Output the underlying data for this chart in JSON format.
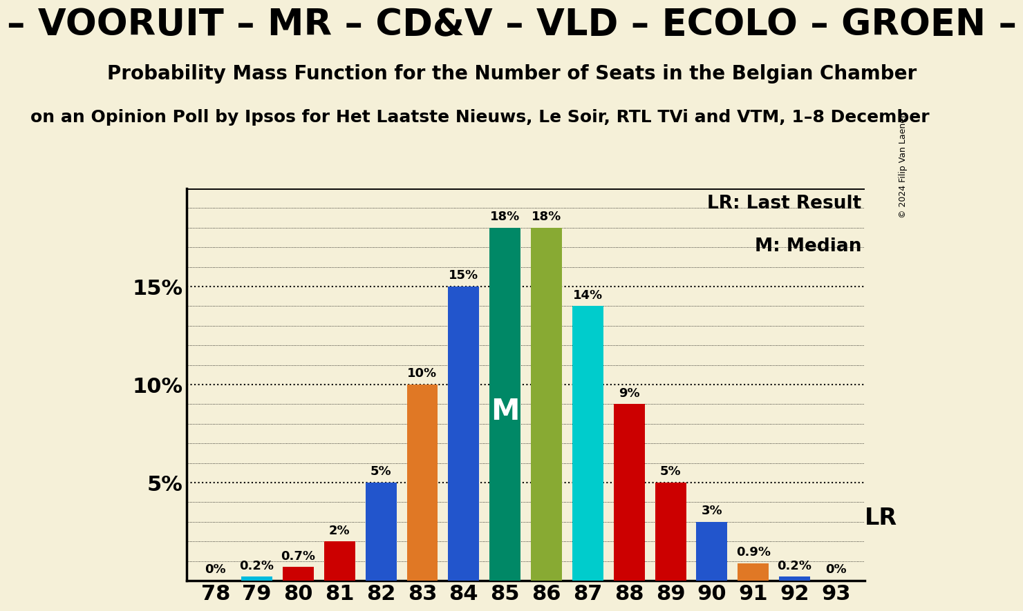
{
  "title_marquee": "– VOORUIT – MR – CD&V – VLD – ECOLO – GROEN –",
  "title_main": "Probability Mass Function for the Number of Seats in the Belgian Chamber",
  "title_sub": "on an Opinion Poll by Ipsos for Het Laatste Nieuws, Le Soir, RTL TVi and VTM, 1–8 December",
  "copyright": "© 2024 Filip Van Laenen",
  "legend_lr": "LR: Last Result",
  "legend_m": "M: Median",
  "background_color": "#f5f0d8",
  "seats": [
    78,
    79,
    80,
    81,
    82,
    83,
    84,
    85,
    86,
    87,
    88,
    89,
    90,
    91,
    92,
    93
  ],
  "probabilities": [
    0.0,
    0.2,
    0.7,
    2.0,
    5.0,
    10.0,
    15.0,
    18.0,
    18.0,
    14.0,
    9.0,
    5.0,
    3.0,
    0.9,
    0.2,
    0.0
  ],
  "bar_labels": [
    "0%",
    "0.2%",
    "0.7%",
    "2%",
    "5%",
    "10%",
    "15%",
    "18%",
    "18%",
    "14%",
    "9%",
    "5%",
    "3%",
    "0.9%",
    "0.2%",
    "0%"
  ],
  "bar_colors": [
    "#cc0000",
    "#00bbdd",
    "#cc0000",
    "#cc0000",
    "#2255cc",
    "#e07825",
    "#2255cc",
    "#008866",
    "#88aa33",
    "#00cccc",
    "#cc0000",
    "#cc0000",
    "#2255cc",
    "#e07825",
    "#2255cc",
    "#2255cc"
  ],
  "median_seat": 85,
  "lr_seat": 93,
  "ylim_max": 20.0,
  "ytick_positions": [
    5,
    10,
    15
  ],
  "ytick_labels": [
    "5%",
    "10%",
    "15%"
  ],
  "bar_label_fontsize": 13,
  "ytick_fontsize": 22,
  "xtick_fontsize": 22,
  "title_fontsize_marquee": 38,
  "title_fontsize_main": 20,
  "title_fontsize_sub": 18,
  "legend_fontsize": 19,
  "median_label_fontsize": 30,
  "lr_label_fontsize": 24,
  "copyright_fontsize": 9
}
